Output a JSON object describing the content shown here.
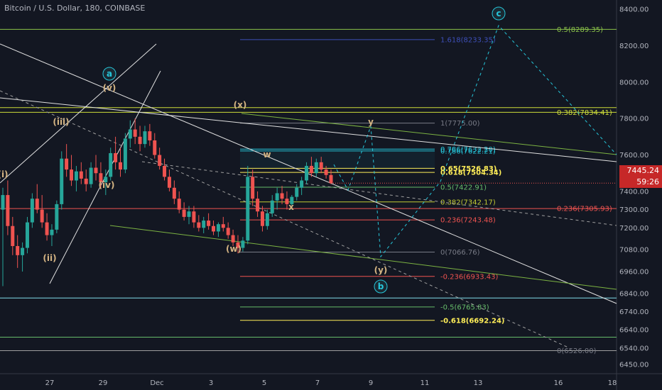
{
  "header": {
    "title": "Bitcoin / U.S. Dollar, 180, COINBASE"
  },
  "price_axis": {
    "last_price": "7445.24",
    "countdown": "59:26",
    "bg": "#131722"
  },
  "chart_data": {
    "type": "line",
    "title": "Bitcoin / U.S. Dollar, 180, COINBASE",
    "ylim": [
      6390,
      8470
    ],
    "x_ticks": [
      "27",
      "29",
      "Dec",
      "3",
      "5",
      "7",
      "9",
      "11",
      "13",
      "16",
      "18"
    ],
    "y_ticks": [
      8400,
      8200,
      8000,
      7800,
      7600,
      7500,
      7400,
      7300,
      7200,
      7080,
      6960,
      6840,
      6740,
      6640,
      6540,
      6450
    ],
    "y_tick_labels": [
      "8400.00",
      "8200.00",
      "8000.00",
      "7800.00",
      "7600.00",
      "7500.00",
      "7400.00",
      "7300.00",
      "7200.00",
      "7080.00",
      "6960.00",
      "6840.00",
      "6740.00",
      "6640.00",
      "6540.00",
      "6450.00"
    ],
    "last_price": 7445.24,
    "candles": [
      [
        7300,
        7420,
        6880,
        7380
      ],
      [
        7380,
        7460,
        7160,
        7210
      ],
      [
        7210,
        7260,
        7050,
        7100
      ],
      [
        7100,
        7160,
        6980,
        7050
      ],
      [
        7050,
        7120,
        6960,
        7090
      ],
      [
        7090,
        7260,
        7060,
        7230
      ],
      [
        7230,
        7390,
        7200,
        7360
      ],
      [
        7360,
        7440,
        7280,
        7300
      ],
      [
        7300,
        7380,
        7200,
        7230
      ],
      [
        7230,
        7280,
        7130,
        7160
      ],
      [
        7160,
        7220,
        7100,
        7190
      ],
      [
        7190,
        7350,
        7170,
        7330
      ],
      [
        7330,
        7620,
        7300,
        7580
      ],
      [
        7580,
        7660,
        7480,
        7520
      ],
      [
        7520,
        7600,
        7430,
        7460
      ],
      [
        7460,
        7540,
        7400,
        7510
      ],
      [
        7510,
        7560,
        7440,
        7470
      ],
      [
        7470,
        7520,
        7400,
        7440
      ],
      [
        7440,
        7560,
        7420,
        7530
      ],
      [
        7530,
        7600,
        7460,
        7500
      ],
      [
        7500,
        7560,
        7420,
        7450
      ],
      [
        7450,
        7520,
        7380,
        7480
      ],
      [
        7480,
        7640,
        7460,
        7610
      ],
      [
        7610,
        7700,
        7520,
        7560
      ],
      [
        7560,
        7640,
        7480,
        7520
      ],
      [
        7520,
        7720,
        7500,
        7690
      ],
      [
        7690,
        7790,
        7640,
        7740
      ],
      [
        7740,
        7800,
        7660,
        7700
      ],
      [
        7700,
        7760,
        7620,
        7660
      ],
      [
        7660,
        7760,
        7640,
        7730
      ],
      [
        7730,
        7770,
        7650,
        7680
      ],
      [
        7680,
        7720,
        7580,
        7600
      ],
      [
        7600,
        7640,
        7520,
        7540
      ],
      [
        7540,
        7580,
        7460,
        7480
      ],
      [
        7480,
        7520,
        7400,
        7420
      ],
      [
        7420,
        7460,
        7330,
        7360
      ],
      [
        7360,
        7400,
        7280,
        7300
      ],
      [
        7300,
        7340,
        7240,
        7260
      ],
      [
        7260,
        7320,
        7220,
        7290
      ],
      [
        7290,
        7320,
        7200,
        7230
      ],
      [
        7230,
        7270,
        7180,
        7200
      ],
      [
        7200,
        7260,
        7170,
        7240
      ],
      [
        7240,
        7280,
        7190,
        7210
      ],
      [
        7210,
        7240,
        7160,
        7180
      ],
      [
        7180,
        7230,
        7150,
        7220
      ],
      [
        7220,
        7260,
        7180,
        7200
      ],
      [
        7200,
        7230,
        7140,
        7160
      ],
      [
        7160,
        7190,
        7100,
        7120
      ],
      [
        7120,
        7160,
        7060,
        7090
      ],
      [
        7090,
        7150,
        7070,
        7130
      ],
      [
        7130,
        7540,
        7110,
        7480
      ],
      [
        7480,
        7520,
        7320,
        7360
      ],
      [
        7360,
        7400,
        7260,
        7290
      ],
      [
        7290,
        7320,
        7180,
        7210
      ],
      [
        7210,
        7300,
        7190,
        7280
      ],
      [
        7280,
        7380,
        7260,
        7350
      ],
      [
        7350,
        7420,
        7300,
        7390
      ],
      [
        7390,
        7430,
        7330,
        7360
      ],
      [
        7360,
        7400,
        7300,
        7330
      ],
      [
        7330,
        7380,
        7300,
        7370
      ],
      [
        7370,
        7440,
        7350,
        7420
      ],
      [
        7420,
        7480,
        7380,
        7460
      ],
      [
        7460,
        7560,
        7440,
        7540
      ],
      [
        7540,
        7590,
        7480,
        7500
      ],
      [
        7500,
        7580,
        7480,
        7560
      ],
      [
        7560,
        7590,
        7500,
        7520
      ],
      [
        7520,
        7540,
        7470,
        7490
      ],
      [
        7490,
        7520,
        7440,
        7445
      ]
    ],
    "fib_levels": [
      {
        "label": "1.618(8233.35)",
        "value": 8233.35,
        "color": "#3d4fb8"
      },
      {
        "label": "0.5(8289.35)",
        "value": 8289.35,
        "color": "#8bc34a"
      },
      {
        "label": "0.382(7834.41)",
        "value": 7834.41,
        "color": "#cddc39"
      },
      {
        "label": "1(7775.00)",
        "value": 7775.0,
        "color": "#787b86"
      },
      {
        "label": "0.786(7632.20)",
        "value": 7632.2,
        "color": "#26c6da"
      },
      {
        "label": "0.786(7622.21)",
        "value": 7622.21,
        "color": "#26c6da"
      },
      {
        "label": "0.65(7526.83)",
        "value": 7526.83,
        "color": "#ffee58"
      },
      {
        "label": "0.618(7504.34)",
        "value": 7504.34,
        "color": "#ffee58"
      },
      {
        "label": "0.5(7422.91)",
        "value": 7422.91,
        "color": "#66bb6a"
      },
      {
        "label": "0.382(7342.17)",
        "value": 7342.17,
        "color": "#c0ca33"
      },
      {
        "label": "0.236(7305.93)",
        "value": 7305.93,
        "color": "#ef5350"
      },
      {
        "label": "0.236(7243.48)",
        "value": 7243.48,
        "color": "#ef5350"
      },
      {
        "label": "0(7066.76)",
        "value": 7066.76,
        "color": "#787b86"
      },
      {
        "label": "-0.236(6933.43)",
        "value": 6933.43,
        "color": "#ef5350"
      },
      {
        "label": "-0.5(6765.83)",
        "value": 6765.83,
        "color": "#66bb6a"
      },
      {
        "label": "-0.618(6692.24)",
        "value": 6692.24,
        "color": "#ffee58"
      },
      {
        "label": "0(6526.00)",
        "value": 6526.0,
        "color": "#787b86"
      }
    ],
    "wave_labels": [
      "(i)",
      "(ii)",
      "(iii)",
      "(iv)",
      "(v)",
      "a",
      "(x)",
      "w",
      "x",
      "y",
      "(w)",
      "(y)",
      "b",
      "c"
    ]
  }
}
